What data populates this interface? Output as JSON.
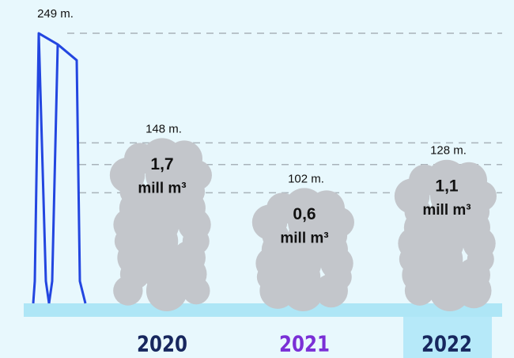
{
  "chart_data": {
    "type": "cloud",
    "reference": {
      "value": 249,
      "value_label": "249 m.",
      "color": "#2346e0"
    },
    "categories": [
      "2020",
      "2021",
      "2022"
    ],
    "category_colors": [
      "#17275e",
      "#7a2fd6",
      "#17275e"
    ],
    "highlight_index": 2,
    "highlight_color": "#b6e9f9",
    "values": [
      148,
      102,
      128
    ],
    "value_labels": [
      "148 m.",
      "102 m.",
      "128 m."
    ],
    "volumes": [
      1.7,
      0.6,
      1.1
    ],
    "volume_labels": [
      "1,7",
      "0,6",
      "1,1"
    ],
    "volume_unit": "mill m³",
    "color": "#c3c6cb",
    "ylim": [
      0,
      260
    ],
    "grid": true
  }
}
